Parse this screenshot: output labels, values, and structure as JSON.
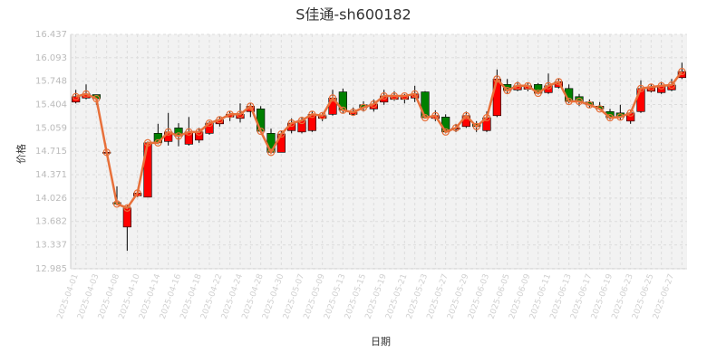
{
  "chart_data": {
    "type": "candlestick",
    "title": "S佳通-sh600182",
    "xlabel": "日期",
    "ylabel": "价格",
    "categories": [
      "2025-04-01",
      null,
      "2025-04-03",
      null,
      "2025-04-08",
      null,
      "2025-04-10",
      null,
      "2025-04-14",
      null,
      "2025-04-16",
      null,
      "2025-04-18",
      null,
      "2025-04-22",
      null,
      "2025-04-24",
      null,
      "2025-04-28",
      null,
      "2025-04-30",
      null,
      "2025-05-07",
      null,
      "2025-05-09",
      null,
      "2025-05-13",
      null,
      "2025-05-15",
      null,
      "2025-05-19",
      null,
      "2025-05-21",
      null,
      "2025-05-23",
      null,
      "2025-05-27",
      null,
      "2025-05-29",
      null,
      "2025-06-03",
      null,
      "2025-06-05",
      null,
      "2025-06-09",
      null,
      "2025-06-11",
      null,
      "2025-06-13",
      null,
      "2025-06-17",
      null,
      "2025-06-19",
      null,
      "2025-06-23",
      null,
      "2025-06-25",
      null,
      "2025-06-27",
      null
    ],
    "open": [
      15.44,
      15.5,
      15.55,
      14.7,
      13.96,
      13.6,
      14.06,
      14.04,
      14.98,
      14.86,
      15.06,
      14.82,
      14.88,
      14.98,
      15.12,
      15.22,
      15.2,
      15.3,
      15.34,
      14.98,
      14.7,
      15.02,
      15.0,
      15.02,
      15.2,
      15.26,
      15.59,
      15.26,
      15.4,
      15.34,
      15.44,
      15.48,
      15.48,
      15.5,
      15.59,
      15.2,
      15.22,
      15.04,
      15.08,
      15.12,
      15.02,
      15.24,
      15.7,
      15.62,
      15.63,
      15.7,
      15.58,
      15.66,
      15.64,
      15.52,
      15.44,
      15.38,
      15.3,
      15.28,
      15.16,
      15.3,
      15.6,
      15.58,
      15.62,
      15.8
    ],
    "high": [
      15.62,
      15.7,
      15.55,
      14.72,
      14.2,
      13.92,
      14.15,
      14.86,
      15.12,
      15.28,
      15.13,
      15.22,
      15.06,
      15.16,
      15.22,
      15.3,
      15.42,
      15.42,
      15.38,
      15.05,
      15.02,
      15.2,
      15.22,
      15.3,
      15.28,
      15.62,
      15.64,
      15.36,
      15.45,
      15.48,
      15.62,
      15.6,
      15.56,
      15.68,
      15.6,
      15.32,
      15.26,
      15.12,
      15.3,
      15.16,
      15.3,
      15.92,
      15.78,
      15.74,
      15.72,
      15.72,
      15.86,
      15.78,
      15.7,
      15.56,
      15.48,
      15.44,
      15.34,
      15.4,
      15.32,
      15.76,
      15.7,
      15.74,
      15.78,
      16.02
    ],
    "low": [
      15.42,
      15.48,
      15.4,
      14.68,
      13.92,
      13.25,
      14.04,
      14.04,
      14.82,
      14.8,
      14.79,
      14.8,
      14.84,
      14.96,
      15.08,
      15.16,
      15.14,
      15.22,
      15.0,
      14.68,
      14.7,
      14.98,
      14.98,
      15.0,
      15.16,
      15.24,
      15.28,
      15.24,
      15.3,
      15.3,
      15.4,
      15.46,
      15.42,
      15.44,
      15.2,
      15.16,
      14.98,
      15.0,
      15.06,
      15.0,
      15.0,
      15.22,
      15.56,
      15.6,
      15.6,
      15.55,
      15.56,
      15.64,
      15.42,
      15.38,
      15.36,
      15.32,
      15.18,
      15.18,
      15.12,
      15.28,
      15.58,
      15.56,
      15.6,
      15.78
    ],
    "close": [
      15.52,
      15.56,
      15.49,
      14.7,
      13.94,
      13.88,
      14.1,
      14.84,
      14.84,
      15.0,
      14.94,
      15.0,
      15.0,
      15.13,
      15.18,
      15.26,
      15.26,
      15.38,
      15.01,
      14.7,
      14.97,
      15.13,
      15.17,
      15.26,
      15.24,
      15.5,
      15.32,
      15.29,
      15.36,
      15.41,
      15.53,
      15.53,
      15.53,
      15.56,
      15.21,
      15.24,
      15.0,
      15.06,
      15.24,
      15.08,
      15.21,
      15.78,
      15.61,
      15.68,
      15.68,
      15.57,
      15.68,
      15.74,
      15.45,
      15.45,
      15.4,
      15.34,
      15.21,
      15.22,
      15.28,
      15.64,
      15.66,
      15.68,
      15.69,
      15.89
    ],
    "up_color": "#ff0000",
    "down_color": "#008000",
    "line_color": "#e8703a",
    "ylim": [
      12.985,
      16.437
    ],
    "yticks": [
      12.985,
      13.337,
      13.682,
      14.026,
      14.371,
      14.715,
      15.059,
      15.404,
      15.748,
      16.093,
      16.437
    ],
    "grid": true
  }
}
